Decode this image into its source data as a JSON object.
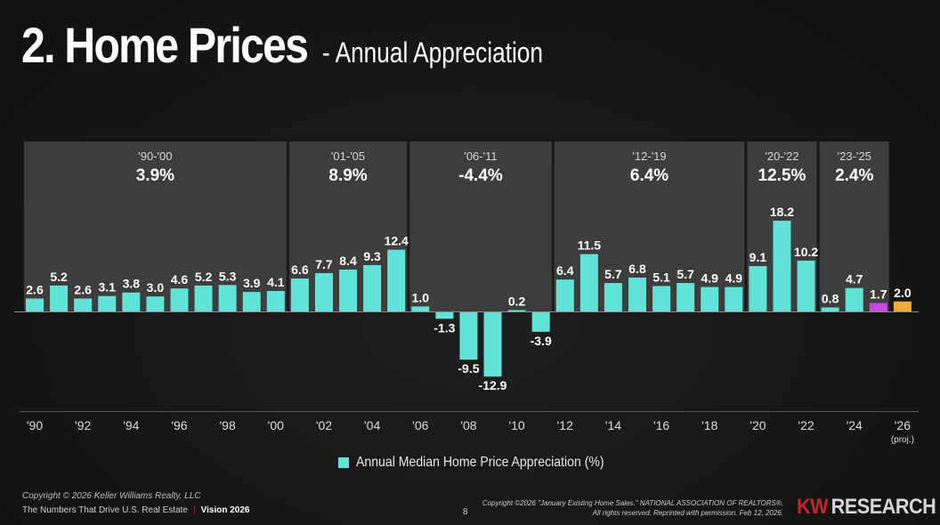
{
  "header": {
    "title": "2. Home Prices",
    "subtitle": "- Annual Appreciation"
  },
  "colors": {
    "bar_actual": "#62e3d8",
    "bar_2025": "#c44be0",
    "bar_projection": "#f2ac3e",
    "period_box": "#3d3d3d"
  },
  "chart_data": {
    "type": "bar",
    "title": "Annual Median Home Price Appreciation",
    "xlabel": "",
    "ylabel": "",
    "unit": "%",
    "ylim": [
      -14,
      20
    ],
    "grid": false,
    "legend": {
      "placement": "bottom-center",
      "entries": [
        "Annual Median Home Price Appreciation (%)"
      ]
    },
    "categories": [
      "1990",
      "1991",
      "1992",
      "1993",
      "1994",
      "1995",
      "1996",
      "1997",
      "1998",
      "1999",
      "2000",
      "2001",
      "2002",
      "2003",
      "2004",
      "2005",
      "2006",
      "2007",
      "2008",
      "2009",
      "2010",
      "2011",
      "2012",
      "2013",
      "2014",
      "2015",
      "2016",
      "2017",
      "2018",
      "2019",
      "2020",
      "2021",
      "2022",
      "2023",
      "2024",
      "2025",
      "2026"
    ],
    "values": [
      2.6,
      5.2,
      2.6,
      3.1,
      3.8,
      3.0,
      4.6,
      5.2,
      5.3,
      3.9,
      4.1,
      6.6,
      7.7,
      8.4,
      9.3,
      12.4,
      1.0,
      -1.3,
      -9.5,
      -12.9,
      0.2,
      -3.9,
      6.4,
      11.5,
      5.7,
      6.8,
      5.1,
      5.7,
      4.9,
      4.9,
      9.1,
      18.2,
      10.2,
      0.8,
      4.7,
      1.7,
      2.0
    ],
    "value_labels": [
      "2.6",
      "5.2",
      "2.6",
      "3.1",
      "3.8",
      "3.0",
      "4.6",
      "5.2",
      "5.3",
      "3.9",
      "4.1",
      "6.6",
      "7.7",
      "8.4",
      "9.3",
      "12.4",
      "1.0",
      "-1.3",
      "-9.5",
      "-12.9",
      "0.2",
      "-3.9",
      "6.4",
      "11.5",
      "5.7",
      "6.8",
      "5.1",
      "5.7",
      "4.9",
      "4.9",
      "9.1",
      "18.2",
      "10.2",
      "0.8",
      "4.7",
      "1.7",
      "2.0"
    ],
    "bar_types": [
      "actual",
      "actual",
      "actual",
      "actual",
      "actual",
      "actual",
      "actual",
      "actual",
      "actual",
      "actual",
      "actual",
      "actual",
      "actual",
      "actual",
      "actual",
      "actual",
      "actual",
      "actual",
      "actual",
      "actual",
      "actual",
      "actual",
      "actual",
      "actual",
      "actual",
      "actual",
      "actual",
      "actual",
      "actual",
      "actual",
      "actual",
      "actual",
      "actual",
      "actual",
      "actual",
      "2025",
      "projection"
    ],
    "x_tick_labels": [
      {
        "index": 0,
        "label": "'90"
      },
      {
        "index": 2,
        "label": "'92"
      },
      {
        "index": 4,
        "label": "'94"
      },
      {
        "index": 6,
        "label": "'96"
      },
      {
        "index": 8,
        "label": "'98"
      },
      {
        "index": 10,
        "label": "'00"
      },
      {
        "index": 12,
        "label": "'02"
      },
      {
        "index": 14,
        "label": "'04"
      },
      {
        "index": 16,
        "label": "'06"
      },
      {
        "index": 18,
        "label": "'08"
      },
      {
        "index": 20,
        "label": "'10"
      },
      {
        "index": 22,
        "label": "'12"
      },
      {
        "index": 24,
        "label": "'14"
      },
      {
        "index": 26,
        "label": "'16"
      },
      {
        "index": 28,
        "label": "'18"
      },
      {
        "index": 30,
        "label": "'20"
      },
      {
        "index": 32,
        "label": "'22"
      },
      {
        "index": 34,
        "label": "'24"
      },
      {
        "index": 36,
        "label": "'26",
        "sublabel": "(proj.)"
      }
    ],
    "periods": [
      {
        "label": "'90-'00",
        "average": "3.9%",
        "start": 0,
        "end": 10
      },
      {
        "label": "'01-'05",
        "average": "8.9%",
        "start": 11,
        "end": 15
      },
      {
        "label": "'06-'11",
        "average": "-4.4%",
        "start": 16,
        "end": 21
      },
      {
        "label": "'12-'19",
        "average": "6.4%",
        "start": 22,
        "end": 29
      },
      {
        "label": "'20-'22",
        "average": "12.5%",
        "start": 30,
        "end": 32
      },
      {
        "label": "'23-'25",
        "average": "2.4%",
        "start": 33,
        "end": 35
      }
    ]
  },
  "legend": {
    "label": "Annual Median Home Price Appreciation (%)"
  },
  "footer": {
    "copyright": "Copyright © 2026 Keller Williams Realty, LLC",
    "tagline": "The Numbers That Drive U.S. Real Estate",
    "separator": "|",
    "edition": "Vision 2026",
    "page_number": "8",
    "source_line1": "Copyright ©2026 \"January Existing Home Sales.\" NATIONAL ASSOCIATION OF REALTORS®.",
    "source_line2": "All rights reserved. Reprinted with permission. Feb 12, 2026.",
    "logo_kw": "KW",
    "logo_research": "RESEARCH"
  }
}
